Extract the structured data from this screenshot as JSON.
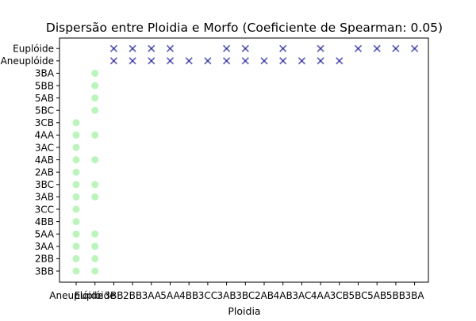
{
  "chart_data": {
    "type": "scatter",
    "title": "Dispersão entre Ploidia e Morfo (Coeficiente de Spearman: 0.05)",
    "xlabel": "Ploidia",
    "ylabel": "",
    "x_categories": [
      "Aneuplóide",
      "Euplóide",
      "3BB",
      "2BB",
      "3AA",
      "5AA",
      "4BB",
      "3CC",
      "3AB",
      "3BC",
      "2AB",
      "4AB",
      "3AC",
      "4AA",
      "3CB",
      "5BC",
      "5AB",
      "5BB",
      "3BA"
    ],
    "y_categories": [
      "3BB",
      "2BB",
      "3AA",
      "5AA",
      "4BB",
      "3CC",
      "3AB",
      "3BC",
      "2AB",
      "4AB",
      "3AC",
      "4AA",
      "3CB",
      "5BC",
      "5AB",
      "5BB",
      "3BA",
      "Aneuplóide",
      "Euplóide"
    ],
    "grid": false,
    "series": [
      {
        "marker": "circle",
        "color": "#90ee90",
        "points": [
          {
            "x": "Aneuplóide",
            "y": "3BB"
          },
          {
            "x": "Aneuplóide",
            "y": "2BB"
          },
          {
            "x": "Aneuplóide",
            "y": "3AA"
          },
          {
            "x": "Aneuplóide",
            "y": "5AA"
          },
          {
            "x": "Aneuplóide",
            "y": "4BB"
          },
          {
            "x": "Aneuplóide",
            "y": "3CC"
          },
          {
            "x": "Aneuplóide",
            "y": "3AB"
          },
          {
            "x": "Aneuplóide",
            "y": "3BC"
          },
          {
            "x": "Aneuplóide",
            "y": "2AB"
          },
          {
            "x": "Aneuplóide",
            "y": "4AB"
          },
          {
            "x": "Aneuplóide",
            "y": "3AC"
          },
          {
            "x": "Aneuplóide",
            "y": "4AA"
          },
          {
            "x": "Aneuplóide",
            "y": "3CB"
          },
          {
            "x": "Euplóide",
            "y": "3BB"
          },
          {
            "x": "Euplóide",
            "y": "2BB"
          },
          {
            "x": "Euplóide",
            "y": "3AA"
          },
          {
            "x": "Euplóide",
            "y": "5AA"
          },
          {
            "x": "Euplóide",
            "y": "3AB"
          },
          {
            "x": "Euplóide",
            "y": "3BC"
          },
          {
            "x": "Euplóide",
            "y": "4AB"
          },
          {
            "x": "Euplóide",
            "y": "4AA"
          },
          {
            "x": "Euplóide",
            "y": "5BC"
          },
          {
            "x": "Euplóide",
            "y": "5AB"
          },
          {
            "x": "Euplóide",
            "y": "5BB"
          },
          {
            "x": "Euplóide",
            "y": "3BA"
          }
        ]
      },
      {
        "marker": "x",
        "color": "#00008b",
        "points": [
          {
            "x": "3BB",
            "y": "Euplóide"
          },
          {
            "x": "2BB",
            "y": "Euplóide"
          },
          {
            "x": "3AA",
            "y": "Euplóide"
          },
          {
            "x": "5AA",
            "y": "Euplóide"
          },
          {
            "x": "3AB",
            "y": "Euplóide"
          },
          {
            "x": "3BC",
            "y": "Euplóide"
          },
          {
            "x": "4AB",
            "y": "Euplóide"
          },
          {
            "x": "4AA",
            "y": "Euplóide"
          },
          {
            "x": "5BC",
            "y": "Euplóide"
          },
          {
            "x": "5AB",
            "y": "Euplóide"
          },
          {
            "x": "5BB",
            "y": "Euplóide"
          },
          {
            "x": "3BA",
            "y": "Euplóide"
          },
          {
            "x": "3BB",
            "y": "Aneuplóide"
          },
          {
            "x": "2BB",
            "y": "Aneuplóide"
          },
          {
            "x": "3AA",
            "y": "Aneuplóide"
          },
          {
            "x": "5AA",
            "y": "Aneuplóide"
          },
          {
            "x": "4BB",
            "y": "Aneuplóide"
          },
          {
            "x": "3CC",
            "y": "Aneuplóide"
          },
          {
            "x": "3AB",
            "y": "Aneuplóide"
          },
          {
            "x": "3BC",
            "y": "Aneuplóide"
          },
          {
            "x": "2AB",
            "y": "Aneuplóide"
          },
          {
            "x": "4AB",
            "y": "Aneuplóide"
          },
          {
            "x": "3AC",
            "y": "Aneuplóide"
          },
          {
            "x": "4AA",
            "y": "Aneuplóide"
          },
          {
            "x": "3CB",
            "y": "Aneuplóide"
          }
        ]
      }
    ]
  }
}
